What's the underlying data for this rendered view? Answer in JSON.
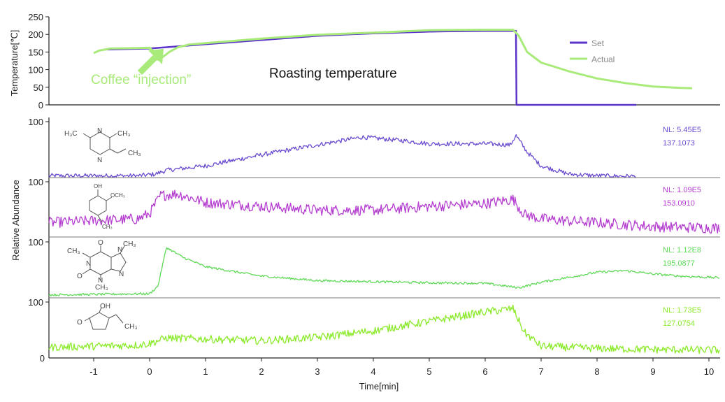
{
  "chart_data": [
    {
      "type": "line",
      "ylabel": "Temperature[℃]",
      "yticks": [
        "250",
        "200",
        "150",
        "100",
        "50",
        "0"
      ],
      "ylim": [
        0,
        250
      ],
      "annotation_title": "Roasting temperature",
      "annotation_event": "Coffee “injection”",
      "legend_position": "top-right",
      "series": [
        {
          "name": "Set",
          "color": "#5b34c9",
          "points": [
            [
              -0.8,
              157
            ],
            [
              0,
              160
            ],
            [
              1,
              172
            ],
            [
              2,
              184
            ],
            [
              3,
              196
            ],
            [
              4,
              203
            ],
            [
              5,
              208
            ],
            [
              6,
              210
            ],
            [
              6.55,
              210
            ],
            [
              6.56,
              0
            ],
            [
              8.7,
              0
            ]
          ]
        },
        {
          "name": "Actual",
          "color": "#a9eb7a",
          "points": [
            [
              -1,
              147
            ],
            [
              -0.9,
              154
            ],
            [
              -0.7,
              160
            ],
            [
              -0.3,
              161
            ],
            [
              0,
              162
            ],
            [
              0.08,
              150
            ],
            [
              0.15,
              128
            ],
            [
              0.22,
              134
            ],
            [
              0.35,
              150
            ],
            [
              0.5,
              163
            ],
            [
              0.7,
              171
            ],
            [
              1,
              175
            ],
            [
              2,
              188
            ],
            [
              3,
              199
            ],
            [
              4,
              205
            ],
            [
              5,
              212
            ],
            [
              6,
              213
            ],
            [
              6.5,
              213
            ],
            [
              6.6,
              196
            ],
            [
              6.75,
              150
            ],
            [
              7,
              120
            ],
            [
              7.5,
              95
            ],
            [
              8,
              75
            ],
            [
              8.5,
              62
            ],
            [
              9,
              52
            ],
            [
              9.5,
              48
            ],
            [
              9.7,
              47
            ]
          ]
        }
      ]
    },
    {
      "type": "line",
      "compound": "2,3-dimethyl-5-ethylpyrazine",
      "structure_labels": {
        "a": "H₃C",
        "b": "CH₃",
        "c": "CH₃",
        "n1": "N",
        "n2": "N"
      },
      "ylabel": "Relative Abundance",
      "ytick": "100",
      "nl": "NL: 5.45E5",
      "mz": "137.1073",
      "color": "#6a4bcf",
      "x_start": -1.8,
      "x_end": 8.7,
      "noise": 4,
      "profile": [
        [
          -1.8,
          2
        ],
        [
          -0.2,
          2
        ],
        [
          0.1,
          5
        ],
        [
          0.3,
          12
        ],
        [
          1,
          20
        ],
        [
          2,
          40
        ],
        [
          3,
          58
        ],
        [
          3.8,
          72
        ],
        [
          4.5,
          66
        ],
        [
          5,
          60
        ],
        [
          6,
          60
        ],
        [
          6.45,
          58
        ],
        [
          6.55,
          75
        ],
        [
          6.75,
          45
        ],
        [
          7,
          20
        ],
        [
          7.5,
          5
        ],
        [
          8,
          2
        ],
        [
          8.7,
          1
        ]
      ]
    },
    {
      "type": "line",
      "compound": "4-methylguaiacol",
      "structure_labels": {
        "oh": "OH",
        "och3": "OCH₃",
        "ch3": "CH₃"
      },
      "ylabel": "Relative Abundance",
      "ytick": "100",
      "nl": "NL: 1.09E5",
      "mz": "153.0910",
      "color": "#b43dcf",
      "x_start": -1.8,
      "x_end": 10.2,
      "noise": 10,
      "profile": [
        [
          -1.8,
          25
        ],
        [
          -0.2,
          32
        ],
        [
          0,
          42
        ],
        [
          0.2,
          75
        ],
        [
          0.5,
          78
        ],
        [
          1,
          62
        ],
        [
          2,
          55
        ],
        [
          3,
          48
        ],
        [
          4,
          48
        ],
        [
          5,
          55
        ],
        [
          6,
          60
        ],
        [
          6.5,
          68
        ],
        [
          6.7,
          40
        ],
        [
          7,
          32
        ],
        [
          7.5,
          28
        ],
        [
          8,
          25
        ],
        [
          9,
          18
        ],
        [
          10.2,
          15
        ]
      ]
    },
    {
      "type": "line",
      "compound": "caffeine",
      "structure_labels": {
        "n1": "N",
        "n2": "N",
        "n3": "N",
        "n4": "N",
        "o1": "O",
        "o2": "O",
        "ch3a": "CH₃",
        "ch3b": "CH₃",
        "ch3c": "CH₃"
      },
      "ylabel": "Relative Abundance",
      "ytick": "100",
      "nl": "NL: 1.12E8",
      "mz": "195.0877",
      "color": "#5fd957",
      "x_start": -1.8,
      "x_end": 10.2,
      "noise": 2,
      "profile": [
        [
          -1.8,
          4
        ],
        [
          -0.2,
          6
        ],
        [
          0,
          6
        ],
        [
          0.15,
          20
        ],
        [
          0.3,
          90
        ],
        [
          0.6,
          72
        ],
        [
          1,
          55
        ],
        [
          2,
          38
        ],
        [
          3,
          30
        ],
        [
          4,
          28
        ],
        [
          5,
          26
        ],
        [
          6,
          25
        ],
        [
          6.6,
          17
        ],
        [
          7,
          27
        ],
        [
          8,
          45
        ],
        [
          8.5,
          48
        ],
        [
          9,
          42
        ],
        [
          9.5,
          38
        ],
        [
          10.2,
          35
        ]
      ]
    },
    {
      "type": "line",
      "compound": "2-hydroxy-3-ethyl-2-cyclopenten-1-one",
      "structure_labels": {
        "oh": "OH",
        "o": "O",
        "ch3": "CH₃"
      },
      "ylabel": "Relative Abundance",
      "ytick": "100",
      "nl": "NL: 1.73E5",
      "mz": "127.0754",
      "color": "#8bea2a",
      "x_start": -1.8,
      "x_end": 10.2,
      "noise": 7,
      "profile": [
        [
          -1.8,
          18
        ],
        [
          -0.2,
          22
        ],
        [
          0,
          25
        ],
        [
          0.3,
          35
        ],
        [
          1,
          33
        ],
        [
          2,
          30
        ],
        [
          3,
          36
        ],
        [
          4,
          48
        ],
        [
          5,
          65
        ],
        [
          6,
          82
        ],
        [
          6.5,
          88
        ],
        [
          6.7,
          45
        ],
        [
          7,
          20
        ],
        [
          8,
          16
        ],
        [
          9,
          14
        ],
        [
          10.2,
          13
        ]
      ]
    }
  ],
  "x_axis": {
    "label": "Time[min]",
    "ticks": [
      -1,
      0,
      1,
      2,
      3,
      4,
      5,
      6,
      7,
      8,
      9,
      10
    ],
    "range": [
      -1.8,
      10.2
    ]
  },
  "shared_zero_tick": "0"
}
